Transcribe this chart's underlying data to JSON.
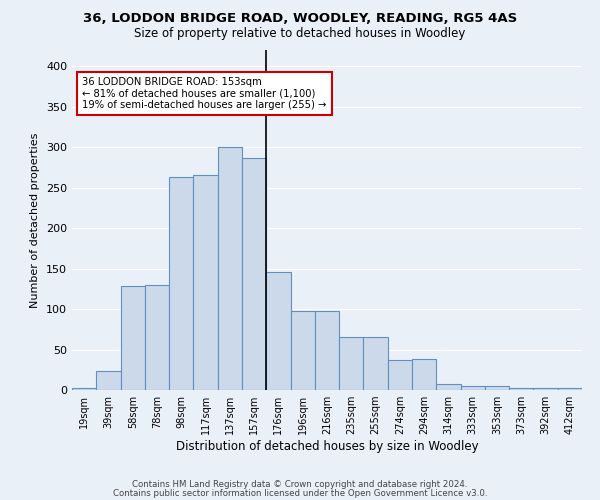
{
  "title1": "36, LODDON BRIDGE ROAD, WOODLEY, READING, RG5 4AS",
  "title2": "Size of property relative to detached houses in Woodley",
  "xlabel": "Distribution of detached houses by size in Woodley",
  "ylabel": "Number of detached properties",
  "bar_labels": [
    "19sqm",
    "39sqm",
    "58sqm",
    "78sqm",
    "98sqm",
    "117sqm",
    "137sqm",
    "157sqm",
    "176sqm",
    "196sqm",
    "216sqm",
    "235sqm",
    "255sqm",
    "274sqm",
    "294sqm",
    "314sqm",
    "333sqm",
    "353sqm",
    "373sqm",
    "392sqm",
    "412sqm"
  ],
  "bar_heights": [
    3,
    23,
    128,
    130,
    263,
    265,
    300,
    286,
    146,
    98,
    97,
    65,
    65,
    37,
    38,
    8,
    5,
    5,
    3,
    2,
    3
  ],
  "bar_color": "#ccd9ea",
  "bar_edge_color": "#6090c0",
  "vline_x": 7.5,
  "annotation_title": "36 LODDON BRIDGE ROAD: 153sqm",
  "annotation_line1": "← 81% of detached houses are smaller (1,100)",
  "annotation_line2": "19% of semi-detached houses are larger (255) →",
  "annotation_box_color": "#ffffff",
  "annotation_box_edge": "#cc0000",
  "ylim": [
    0,
    420
  ],
  "yticks": [
    0,
    50,
    100,
    150,
    200,
    250,
    300,
    350,
    400
  ],
  "background_color": "#eaf0f8",
  "grid_color": "#ffffff",
  "footer1": "Contains HM Land Registry data © Crown copyright and database right 2024.",
  "footer2": "Contains public sector information licensed under the Open Government Licence v3.0."
}
